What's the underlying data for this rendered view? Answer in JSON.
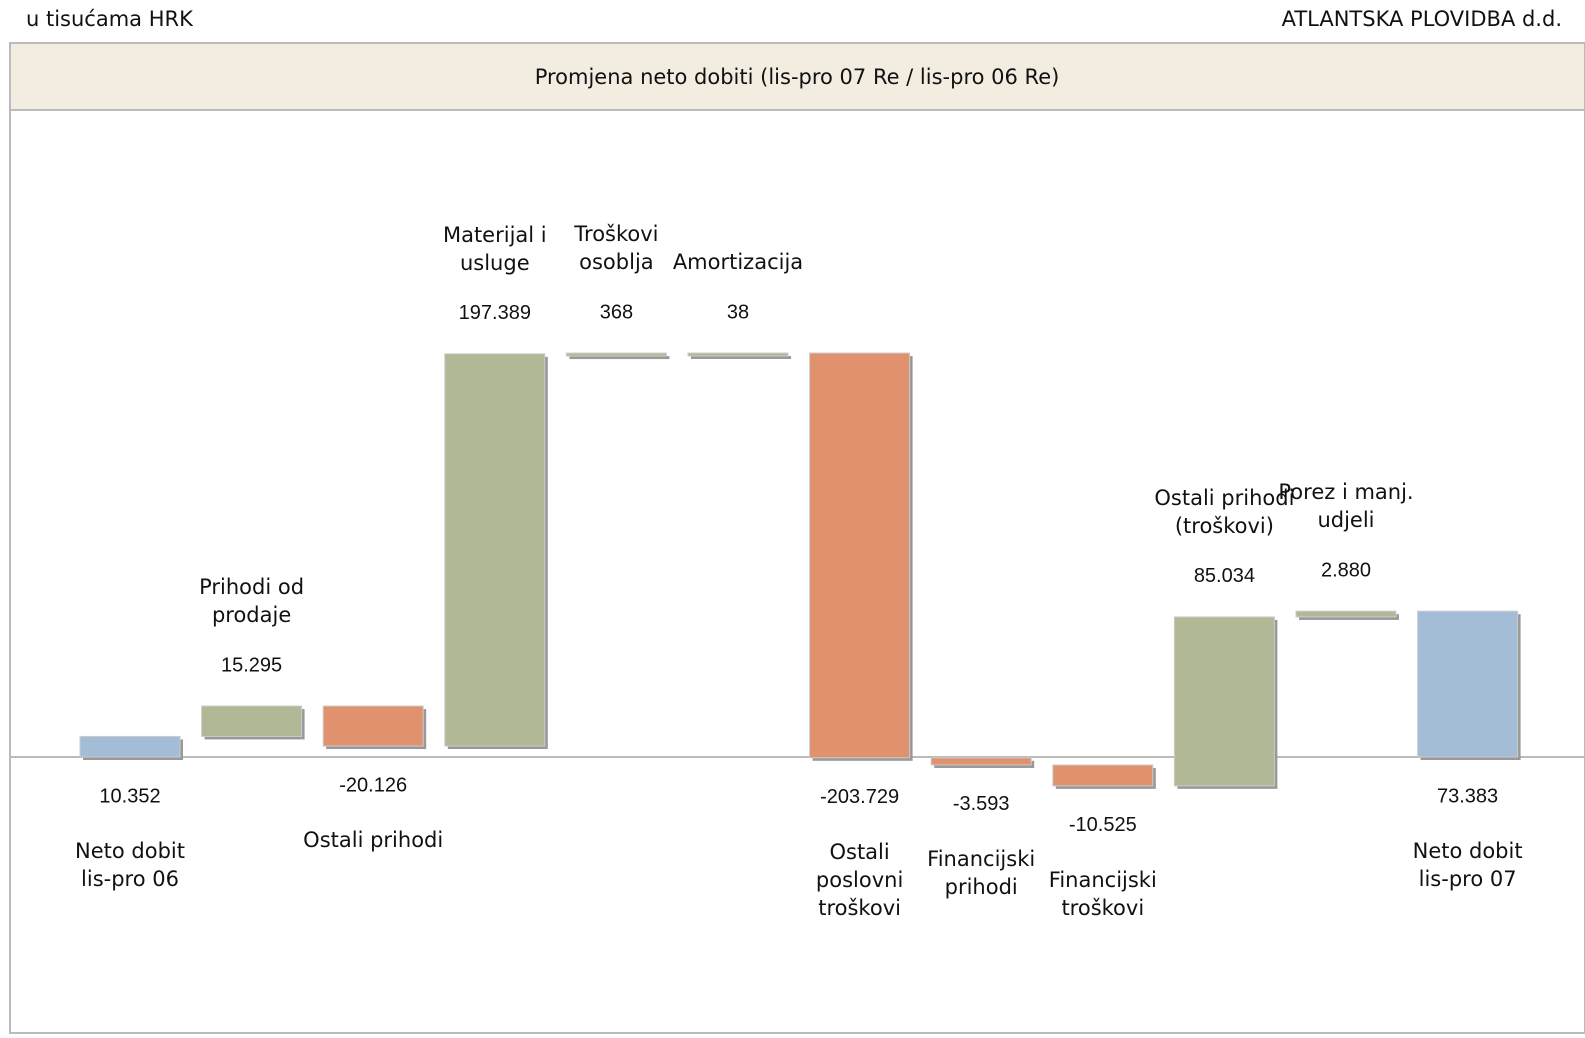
{
  "header": {
    "left": "u tisućama HRK",
    "right": "ATLANTSKA PLOVIDBA d.d."
  },
  "chart_data": {
    "type": "waterfall",
    "title": "Promjena neto dobiti  (lis-pro 07 Re / lis-pro 06 Re)",
    "categories": [
      [
        "Neto dobit",
        "lis-pro 06"
      ],
      [
        "Prihodi od",
        "prodaje"
      ],
      [
        "Ostali prihodi"
      ],
      [
        "Materijal i",
        "usluge"
      ],
      [
        "Troškovi",
        "osoblja"
      ],
      [
        "Amortizacija"
      ],
      [
        "Ostali",
        "poslovni",
        "troškovi"
      ],
      [
        "Financijski",
        "prihodi"
      ],
      [
        "Financijski",
        "troškovi"
      ],
      [
        "Ostali prihodi",
        "(troškovi)"
      ],
      [
        "Porez i manj.",
        "udjeli"
      ],
      [
        "Neto dobit",
        "lis-pro 07"
      ]
    ],
    "measure": [
      "absolute",
      "relative",
      "relative",
      "relative",
      "relative",
      "relative",
      "relative",
      "relative",
      "relative",
      "relative",
      "relative",
      "total"
    ],
    "values": [
      10352,
      15295,
      -20126,
      197389,
      368,
      38,
      -203729,
      -3593,
      -10525,
      85034,
      2880,
      73383
    ],
    "value_labels": [
      "10.352",
      "15.295",
      "-20.126",
      "197.389",
      "368",
      "38",
      "-203.729",
      "-3.593",
      "-10.525",
      "85.034",
      "2.880",
      "73.383"
    ],
    "colors": {
      "total": "#a3bdd6",
      "increase": "#b0b896",
      "decrease": "#e0926e"
    }
  }
}
